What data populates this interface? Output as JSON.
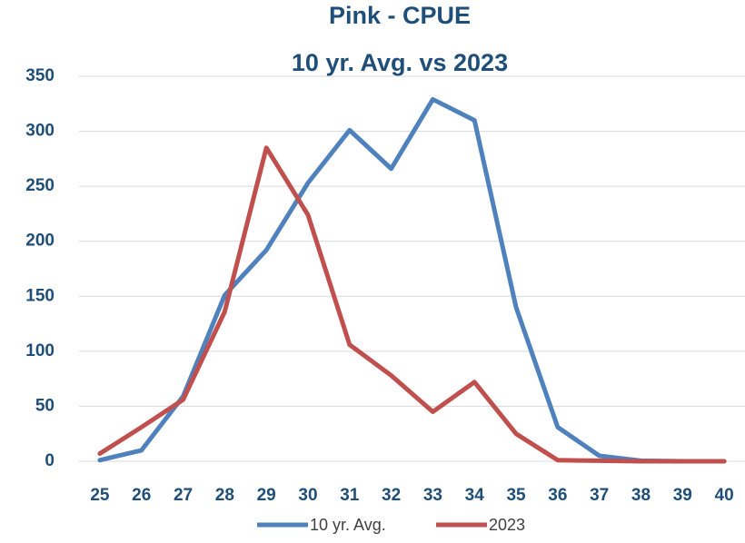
{
  "chart_data": {
    "type": "line",
    "title": "Pink - CPUE",
    "subtitle": "10 yr. Avg. vs 2023",
    "categories": [
      "25",
      "26",
      "27",
      "28",
      "29",
      "30",
      "31",
      "32",
      "33",
      "34",
      "35",
      "36",
      "37",
      "38",
      "39",
      "40"
    ],
    "series": [
      {
        "name": "10 yr. Avg.",
        "color": "#4f81bd",
        "values": [
          1,
          10,
          59,
          151,
          192,
          253,
          301,
          266,
          329,
          310,
          140,
          31,
          5,
          0.5,
          0,
          0
        ]
      },
      {
        "name": "2023",
        "color": "#c0504d",
        "values": [
          7,
          31,
          56,
          136,
          285,
          224,
          106,
          78,
          45,
          72,
          25,
          1,
          0.5,
          0,
          0,
          0
        ]
      }
    ],
    "ylim": [
      0,
      350
    ],
    "yticks": [
      0,
      50,
      100,
      150,
      200,
      250,
      300,
      350
    ],
    "grid": true,
    "legend": "bottom"
  }
}
